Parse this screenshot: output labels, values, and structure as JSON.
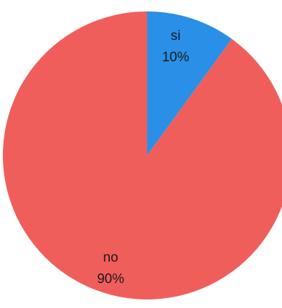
{
  "chart_data": {
    "type": "pie",
    "title": "",
    "slices": [
      {
        "label": "si",
        "value": 10,
        "percent_label": "10%",
        "color": "#2a8fe6"
      },
      {
        "label": "no",
        "value": 90,
        "percent_label": "90%",
        "color": "#f05e5b"
      }
    ],
    "legend": "none",
    "start_angle_deg": 0,
    "direction": "clockwise"
  }
}
